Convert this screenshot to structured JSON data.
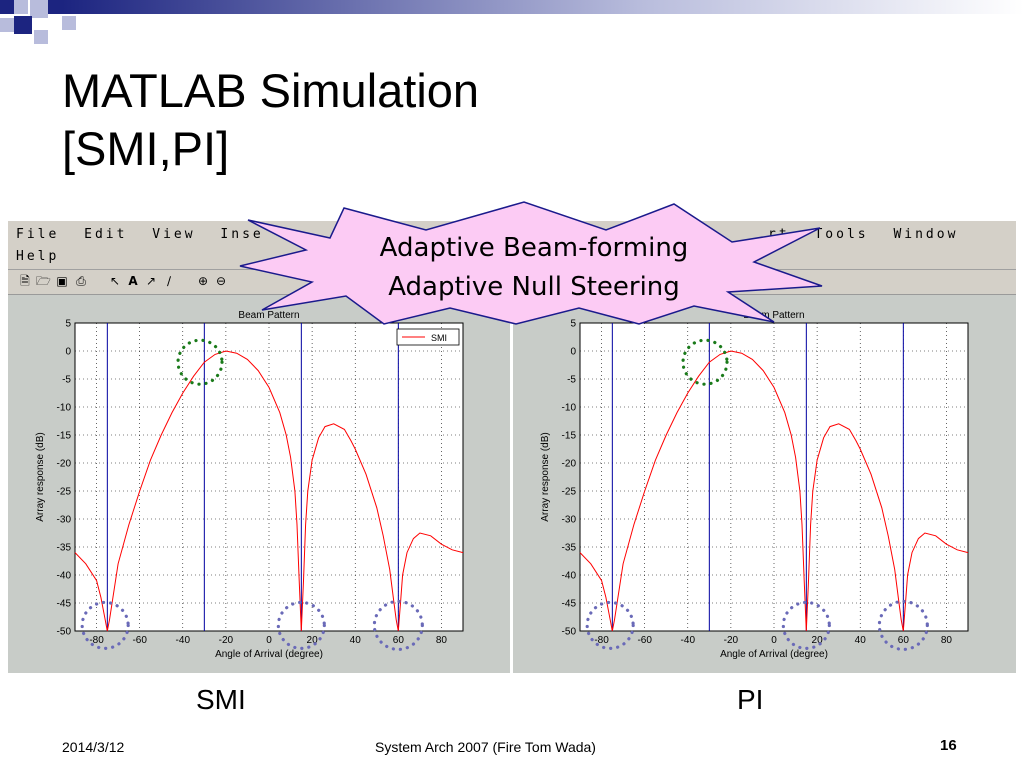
{
  "slide": {
    "title_line1": "MATLAB Simulation",
    "title_line2": "[SMI,PI]",
    "colors": {
      "deco_dark": "#1c2480",
      "deco_light": "#b8bcdc",
      "burst_fill": "#fccbf4"
    }
  },
  "callout": {
    "line1": "Adaptive Beam-forming",
    "line2": "Adaptive Null Steering"
  },
  "matlab": {
    "menu_row1": [
      "File",
      "Edit",
      "View",
      "Inse",
      "rt",
      "Tools",
      "Window"
    ],
    "menu_row2": [
      "Help"
    ],
    "toolbar_icons": [
      "new-file-icon",
      "open-folder-icon",
      "save-icon",
      "print-icon",
      "pointer-arrow-icon",
      "text-icon",
      "arrow-tool-icon",
      "line-tool-icon",
      "zoom-in-icon",
      "zoom-out-icon"
    ]
  },
  "captions": {
    "left": "SMI",
    "right": "PI"
  },
  "footer": {
    "date": "2014/3/12",
    "center": "System Arch 2007  (Fire Tom Wada)",
    "page": "16"
  },
  "chart_data": [
    {
      "type": "line",
      "title": "Beam Pattern",
      "xlabel": "Angle of Arrival (degree)",
      "ylabel": "Array response (dB)",
      "xlim": [
        -90,
        90
      ],
      "ylim": [
        -50,
        5
      ],
      "xticks": [
        -80,
        -60,
        -40,
        -20,
        0,
        20,
        40,
        60,
        80
      ],
      "yticks": [
        5,
        0,
        -5,
        -10,
        -15,
        -20,
        -25,
        -30,
        -35,
        -40,
        -45,
        -50
      ],
      "grid": true,
      "legend": {
        "position": "top-right",
        "entries": [
          "SMI"
        ]
      },
      "vertical_lines": [
        -75,
        -30,
        15,
        60
      ],
      "series": [
        {
          "name": "SMI",
          "color": "#ff0000",
          "x": [
            -90,
            -85,
            -80,
            -78,
            -76,
            -75,
            -74,
            -72,
            -70,
            -65,
            -60,
            -55,
            -50,
            -45,
            -40,
            -35,
            -30,
            -25,
            -20,
            -15,
            -10,
            -5,
            0,
            5,
            8,
            10,
            12,
            13,
            14,
            15,
            16,
            17,
            18,
            20,
            23,
            26,
            30,
            35,
            38,
            40,
            45,
            50,
            53,
            56,
            58,
            59,
            60,
            61,
            62,
            64,
            67,
            70,
            75,
            80,
            85,
            90
          ],
          "y": [
            -36,
            -38,
            -41,
            -44,
            -48,
            -50,
            -48,
            -43,
            -38,
            -31,
            -25,
            -19.5,
            -15,
            -11,
            -7.5,
            -4.5,
            -2,
            -0.6,
            0,
            -0.4,
            -1.5,
            -3.5,
            -6.5,
            -11,
            -15,
            -19,
            -25,
            -31,
            -41,
            -50,
            -41,
            -31,
            -25,
            -19.5,
            -15.5,
            -13.5,
            -13,
            -14,
            -16,
            -17.5,
            -22,
            -28,
            -33,
            -39,
            -45,
            -48,
            -50,
            -45,
            -40,
            -36,
            -33.5,
            -32.5,
            -33,
            -34.5,
            -35.5,
            -36
          ]
        }
      ]
    },
    {
      "type": "line",
      "title": "Beam Pattern",
      "xlabel": "Angle of Arrival (degree)",
      "ylabel": "Array response (dB)",
      "xlim": [
        -90,
        90
      ],
      "ylim": [
        -50,
        5
      ],
      "xticks": [
        -80,
        -60,
        -40,
        -20,
        0,
        20,
        40,
        60,
        80
      ],
      "yticks": [
        5,
        0,
        -5,
        -10,
        -15,
        -20,
        -25,
        -30,
        -35,
        -40,
        -45,
        -50
      ],
      "grid": true,
      "vertical_lines": [
        -75,
        -30,
        15,
        60
      ],
      "series": [
        {
          "color": "#ff0000",
          "x": [
            -90,
            -85,
            -80,
            -78,
            -76,
            -75,
            -74,
            -72,
            -70,
            -65,
            -60,
            -55,
            -50,
            -45,
            -40,
            -35,
            -30,
            -25,
            -20,
            -15,
            -10,
            -5,
            0,
            5,
            8,
            10,
            12,
            13,
            14,
            15,
            16,
            17,
            18,
            20,
            23,
            26,
            30,
            35,
            38,
            40,
            45,
            50,
            53,
            56,
            58,
            59,
            60,
            61,
            62,
            64,
            67,
            70,
            75,
            80,
            85,
            90
          ],
          "y": [
            -36,
            -38,
            -41,
            -44,
            -48,
            -50,
            -48,
            -43,
            -38,
            -31,
            -25,
            -19.5,
            -15,
            -11,
            -7.5,
            -4.5,
            -2,
            -0.6,
            0,
            -0.4,
            -1.5,
            -3.5,
            -6.5,
            -11,
            -15,
            -19,
            -25,
            -31,
            -41,
            -50,
            -41,
            -31,
            -25,
            -19.5,
            -15.5,
            -13.5,
            -13,
            -14,
            -16,
            -17.5,
            -22,
            -28,
            -33,
            -39,
            -45,
            -48,
            -50,
            -45,
            -40,
            -36,
            -33.5,
            -32.5,
            -33,
            -34.5,
            -35.5,
            -36
          ]
        }
      ]
    }
  ]
}
